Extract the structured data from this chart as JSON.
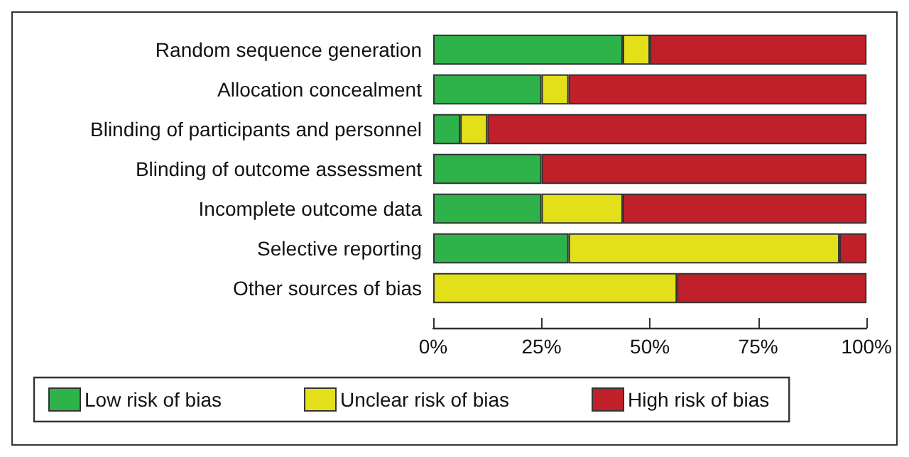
{
  "chart_data": {
    "type": "bar",
    "orientation": "horizontal",
    "stacked": true,
    "categories": [
      "Random sequence generation",
      "Allocation concealment",
      "Blinding of participants and personnel",
      "Blinding of outcome assessment",
      "Incomplete outcome data",
      "Selective reporting",
      "Other sources of bias"
    ],
    "series": [
      {
        "name": "Low risk of bias",
        "color": "#2db34a",
        "values": [
          43.75,
          25,
          6.25,
          25,
          25,
          31.25,
          null
        ]
      },
      {
        "name": "Unclear risk of bias",
        "color": "#e3e01a",
        "values": [
          6.25,
          6.25,
          6.25,
          null,
          18.75,
          62.5,
          56.25
        ]
      },
      {
        "name": "High risk of bias",
        "color": "#c0202a",
        "values": [
          50,
          68.75,
          87.5,
          75,
          56.25,
          6.25,
          43.75
        ]
      }
    ],
    "xlim": [
      0,
      100
    ],
    "xticks": [
      {
        "value": 0,
        "label": "0%"
      },
      {
        "value": 25,
        "label": "25%"
      },
      {
        "value": 50,
        "label": "50%"
      },
      {
        "value": 75,
        "label": "75%"
      },
      {
        "value": 100,
        "label": "100%"
      }
    ],
    "grid": false,
    "legend": "bottom"
  }
}
